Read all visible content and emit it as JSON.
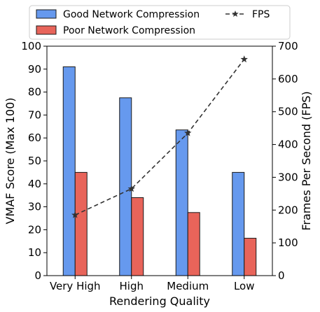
{
  "chart_data": {
    "type": "bar",
    "xlabel": "Rendering Quality",
    "categories": [
      "Very High",
      "High",
      "Medium",
      "Low"
    ],
    "ylabel": "VMAF Score (Max 100)",
    "ylim": [
      0,
      100
    ],
    "yticks": [
      0,
      10,
      20,
      30,
      40,
      50,
      60,
      70,
      80,
      90,
      100
    ],
    "y2label": "Frames Per Second (FPS)",
    "y2lim": [
      0,
      700
    ],
    "y2ticks": [
      0,
      100,
      200,
      300,
      400,
      500,
      600,
      700
    ],
    "legend_position": "top",
    "grid": false,
    "series": [
      {
        "name": "Good Network Compression",
        "axis": "left",
        "kind": "bar",
        "color": "#6699ee",
        "values": [
          91,
          77.5,
          63.5,
          45
        ]
      },
      {
        "name": "Poor Network Compression",
        "axis": "left",
        "kind": "bar",
        "color": "#e8645a",
        "values": [
          45,
          34,
          27.5,
          16.3
        ]
      },
      {
        "name": "FPS",
        "axis": "right",
        "kind": "line",
        "style": "dashed",
        "marker": "star",
        "color": "#333333",
        "values": [
          185,
          265,
          435,
          660
        ]
      }
    ]
  }
}
